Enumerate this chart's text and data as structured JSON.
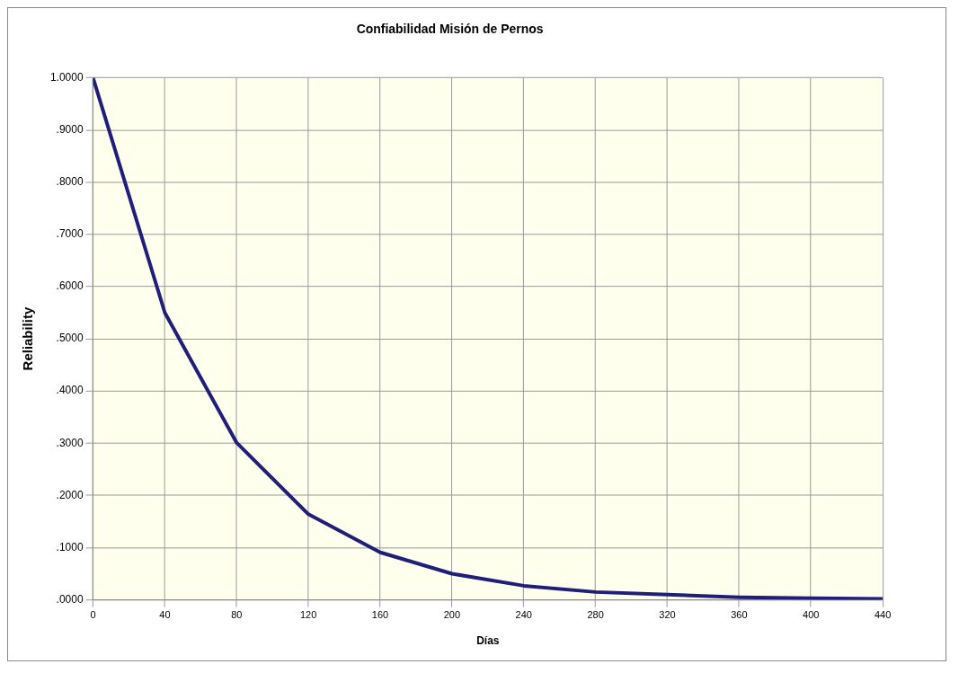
{
  "chart_data": {
    "type": "line",
    "title": "Confiabilidad Misión de Pernos",
    "xlabel": "Días",
    "ylabel": "Reliability",
    "x": [
      0,
      40,
      80,
      120,
      160,
      200,
      240,
      280,
      320,
      360,
      400,
      440
    ],
    "series": [
      {
        "color": "#1f1f7a",
        "values": [
          1.0,
          0.55,
          0.301,
          0.164,
          0.091,
          0.05,
          0.027,
          0.015,
          0.01,
          0.005,
          0.003,
          0.002
        ]
      }
    ],
    "xlim": [
      0,
      440
    ],
    "xticks": [
      0,
      40,
      80,
      120,
      160,
      200,
      240,
      280,
      320,
      360,
      400,
      440
    ],
    "ylim": [
      0,
      1
    ],
    "yticks": [
      {
        "value": 0,
        "label": ".0000"
      },
      {
        "value": 0.1,
        "label": ".1000"
      },
      {
        "value": 0.2,
        "label": ".2000"
      },
      {
        "value": 0.3,
        "label": ".3000"
      },
      {
        "value": 0.4,
        "label": ".4000"
      },
      {
        "value": 0.5,
        "label": ".5000"
      },
      {
        "value": 0.6,
        "label": ".6000"
      },
      {
        "value": 0.7,
        "label": ".7000"
      },
      {
        "value": 0.8,
        "label": ".8000"
      },
      {
        "value": 0.9,
        "label": ".9000"
      },
      {
        "value": 1,
        "label": "1.0000"
      }
    ],
    "grid": true,
    "legend": false,
    "marker": "none",
    "line_style": "solid"
  }
}
